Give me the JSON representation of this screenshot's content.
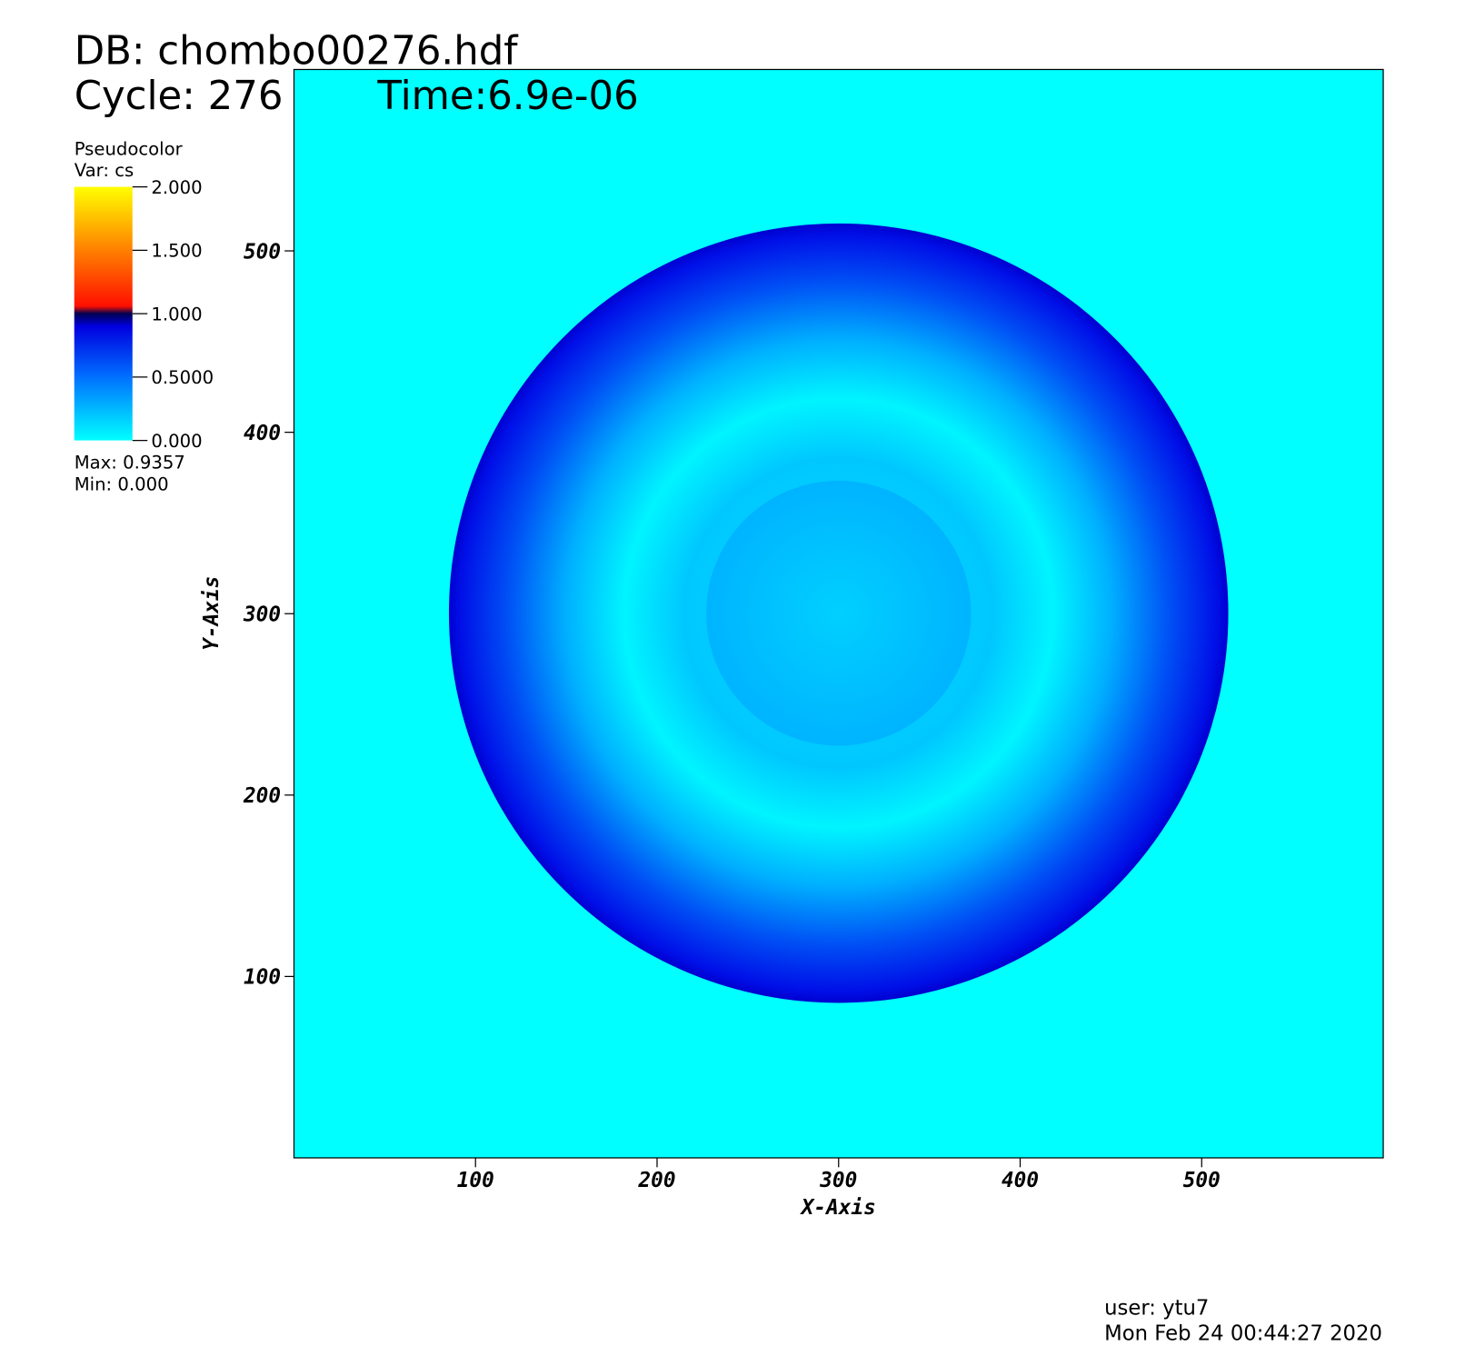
{
  "chart_data": {
    "type": "pseudocolor",
    "title": "DB: chombo00276.hdf",
    "cycle": "Cycle: 276",
    "time": "Time:6.9e-06",
    "legend_title": "Pseudocolor",
    "legend_var": "Var: cs",
    "colorbar_lim": [
      0,
      2
    ],
    "colorbar_ticks": [
      {
        "value": 0,
        "label": "0.000"
      },
      {
        "value": 0.5,
        "label": "0.5000"
      },
      {
        "value": 1,
        "label": "1.000"
      },
      {
        "value": 1.5,
        "label": "1.500"
      },
      {
        "value": 2,
        "label": "2.000"
      }
    ],
    "max_label": "Max:  0.9357",
    "min_label": "Min:  0.000",
    "xlabel": "X-Axis",
    "ylabel": "Y-Axis",
    "xlim": [
      0,
      600
    ],
    "ylim": [
      0,
      600
    ],
    "xticks": [
      100,
      200,
      300,
      400,
      500
    ],
    "yticks": [
      100,
      200,
      300,
      400,
      500
    ],
    "user": "user: ytu7",
    "date": "Mon Feb 24 00:44:27 2020"
  }
}
